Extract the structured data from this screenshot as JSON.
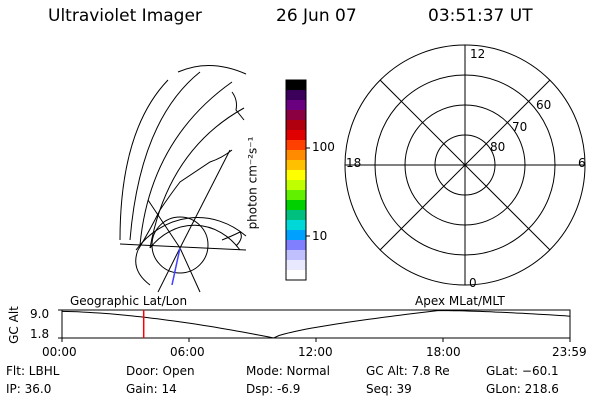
{
  "header": {
    "title": "Ultraviolet Imager",
    "date": "26 Jun 07",
    "time": "03:51:37 UT"
  },
  "colorbar": {
    "unit_label": "photon cm⁻²s⁻¹",
    "ticks": [
      "100",
      "10"
    ],
    "colors": [
      "#000000",
      "#3a005a",
      "#6a0080",
      "#8a0040",
      "#b00010",
      "#e00000",
      "#ff4000",
      "#ff8c00",
      "#ffc000",
      "#ffff00",
      "#c0ff00",
      "#60f000",
      "#00d000",
      "#00c080",
      "#00d8d8",
      "#00a0ff",
      "#8080ff",
      "#c0c0ff",
      "#e8e8ff",
      "#ffffff"
    ]
  },
  "map_left": {
    "label": "Geographic Lat/Lon"
  },
  "polar_plot": {
    "label": "Apex MLat/MLT",
    "mlt_labels": [
      "12",
      "18",
      "6",
      "0"
    ],
    "lat_labels": [
      "60",
      "70",
      "80"
    ]
  },
  "timeline": {
    "axis_label": "GC Alt",
    "y_ticks": [
      "9.0",
      "1.8"
    ],
    "x_ticks": [
      "00:00",
      "06:00",
      "12:00",
      "18:00",
      "23:59"
    ],
    "marker_time_hours": 3.86,
    "marker_color": "#ff0000"
  },
  "info": {
    "filter": "Flt: LBHL",
    "ip": "IP: 36.0",
    "door": "Door: Open",
    "gain": "Gain: 14",
    "mode": "Mode: Normal",
    "dsp": "Dsp:    -6.9",
    "gc_alt": "GC Alt: 7.8 Re",
    "seq": "Seq: 39",
    "glat": "GLat: −60.1",
    "glon": "GLon: 218.6"
  }
}
